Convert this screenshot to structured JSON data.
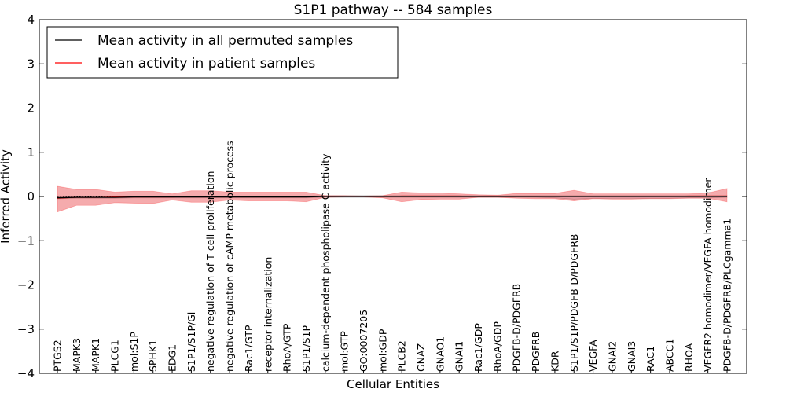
{
  "chart_data": {
    "type": "line",
    "title": "S1P1 pathway -- 584 samples",
    "xlabel": "Cellular Entities",
    "ylabel": "Inferred Activity",
    "ylim": [
      -4,
      4
    ],
    "yticks": [
      -4,
      -3,
      -2,
      -1,
      0,
      1,
      2,
      3,
      4
    ],
    "ytick_labels": [
      "−4",
      "−3",
      "−2",
      "−1",
      "0",
      "1",
      "2",
      "3",
      "4"
    ],
    "legend": {
      "placement": "top-left",
      "entries": [
        {
          "label": "Mean activity in all permuted samples",
          "color": "#000000"
        },
        {
          "label": "Mean activity in patient samples",
          "color": "#ff0000"
        }
      ]
    },
    "categories": [
      "PTGS2",
      "MAPK3",
      "MAPK1",
      "PLCG1",
      "mol:S1P",
      "SPHK1",
      "EDG1",
      "S1P1/S1P/Gi",
      "negative regulation of T cell proliferation",
      "negative regulation of cAMP metabolic process",
      "Rac1/GTP",
      "receptor internalization",
      "RhoA/GTP",
      "S1P1/S1P",
      "calcium-dependent phospholipase C activity",
      "mol:GTP",
      "GO:0007205",
      "mol:GDP",
      "PLCB2",
      "GNAZ",
      "GNAO1",
      "GNAI1",
      "Rac1/GDP",
      "RhoA/GDP",
      "PDGFB-D/PDGFRB",
      "PDGFRB",
      "KDR",
      "S1P1/S1P/PDGFB-D/PDGFRB",
      "VEGFA",
      "GNAI2",
      "GNAI3",
      "RAC1",
      "ABCC1",
      "RHOA",
      "VEGFR2 homodimer/VEGFA homodimer",
      "PDGFB-D/PDGFRB/PLCgamma1"
    ],
    "series": [
      {
        "name": "Mean activity in all permuted samples",
        "color": "#000000",
        "values": [
          -0.03,
          -0.02,
          -0.02,
          -0.02,
          -0.01,
          -0.01,
          -0.01,
          -0.01,
          -0.01,
          -0.01,
          -0.01,
          -0.01,
          -0.01,
          -0.01,
          0.0,
          0.0,
          0.0,
          0.0,
          0.0,
          0.0,
          0.0,
          0.0,
          0.0,
          0.0,
          0.0,
          0.0,
          0.0,
          0.0,
          0.0,
          0.0,
          0.0,
          0.0,
          0.0,
          0.0,
          0.0,
          0.0
        ],
        "lower": [
          -0.05,
          -0.04,
          -0.04,
          -0.04,
          -0.03,
          -0.03,
          -0.03,
          -0.03,
          -0.03,
          -0.03,
          -0.03,
          -0.03,
          -0.03,
          -0.03,
          -0.02,
          -0.02,
          -0.02,
          -0.02,
          -0.02,
          -0.02,
          -0.02,
          -0.02,
          -0.02,
          -0.02,
          -0.02,
          -0.02,
          -0.03,
          -0.06,
          -0.04,
          -0.04,
          -0.04,
          -0.04,
          -0.04,
          -0.03,
          -0.03,
          -0.02
        ],
        "upper": [
          -0.01,
          0.0,
          0.0,
          0.0,
          0.01,
          0.01,
          0.01,
          0.01,
          0.01,
          0.01,
          0.01,
          0.01,
          0.01,
          0.01,
          0.02,
          0.02,
          0.02,
          0.02,
          0.02,
          0.02,
          0.02,
          0.02,
          0.02,
          0.02,
          0.02,
          0.02,
          0.02,
          0.02,
          0.02,
          0.02,
          0.02,
          0.02,
          0.02,
          0.02,
          0.02,
          0.02
        ]
      },
      {
        "name": "Mean activity in patient samples",
        "color": "#ff0000",
        "values": [
          -0.04,
          -0.02,
          -0.02,
          -0.01,
          -0.01,
          -0.01,
          -0.01,
          0.0,
          0.0,
          0.0,
          0.0,
          0.0,
          0.0,
          0.0,
          0.0,
          0.0,
          0.0,
          0.0,
          0.01,
          0.01,
          0.01,
          0.01,
          0.0,
          0.0,
          0.0,
          0.0,
          0.0,
          0.0,
          0.0,
          0.0,
          0.0,
          0.0,
          0.0,
          0.01,
          0.01,
          0.01
        ],
        "lower": [
          -0.35,
          -0.2,
          -0.2,
          -0.14,
          -0.15,
          -0.16,
          -0.08,
          -0.13,
          -0.13,
          -0.08,
          -0.1,
          -0.1,
          -0.1,
          -0.12,
          -0.02,
          -0.01,
          -0.01,
          -0.03,
          -0.12,
          -0.07,
          -0.06,
          -0.06,
          -0.02,
          -0.02,
          -0.04,
          -0.05,
          -0.05,
          -0.1,
          -0.05,
          -0.06,
          -0.06,
          -0.05,
          -0.05,
          -0.04,
          -0.04,
          -0.12
        ],
        "upper": [
          0.23,
          0.16,
          0.16,
          0.1,
          0.12,
          0.12,
          0.06,
          0.13,
          0.13,
          0.1,
          0.1,
          0.1,
          0.1,
          0.1,
          0.02,
          0.02,
          0.01,
          0.02,
          0.1,
          0.08,
          0.08,
          0.06,
          0.04,
          0.03,
          0.07,
          0.07,
          0.07,
          0.14,
          0.06,
          0.06,
          0.06,
          0.06,
          0.06,
          0.06,
          0.08,
          0.18
        ]
      }
    ]
  }
}
